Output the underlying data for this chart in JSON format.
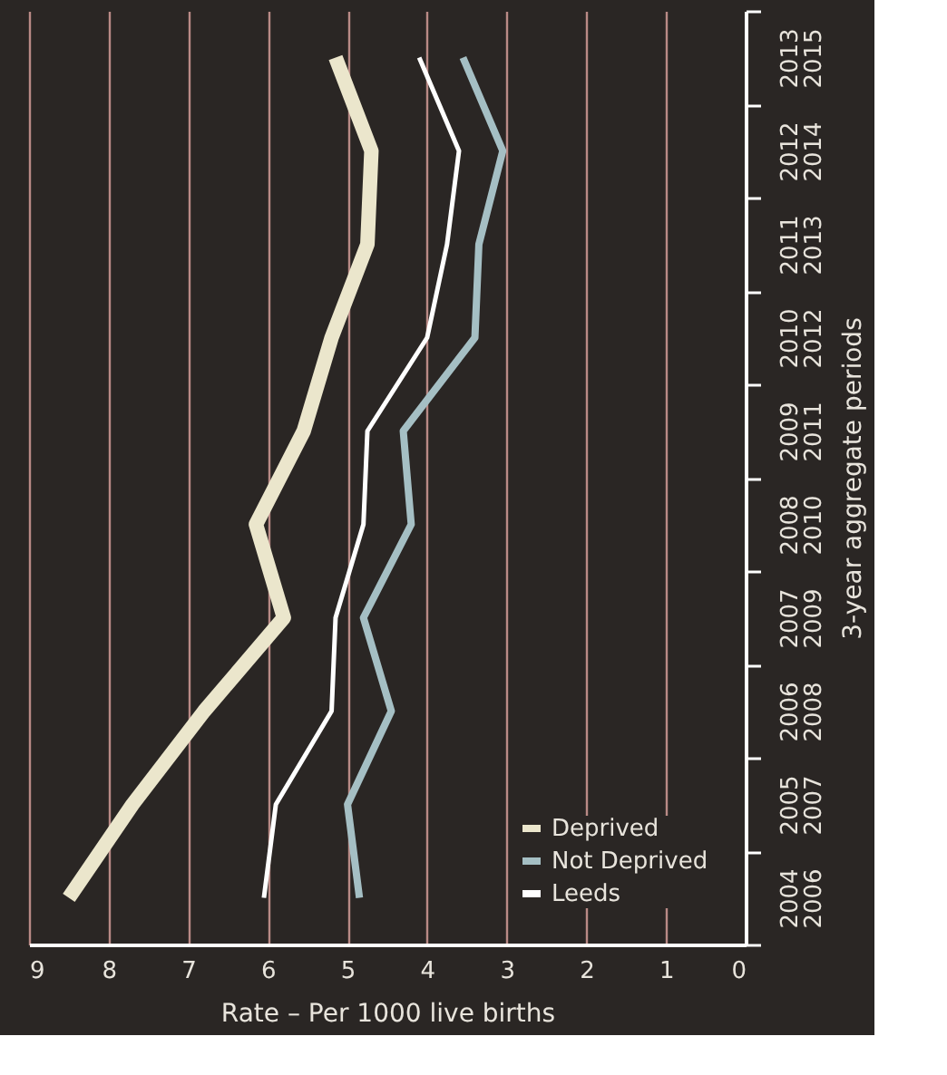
{
  "chart_data": {
    "type": "line",
    "orientation": "horizontal",
    "xlabel": "Rate – Per 1000 live births",
    "ylabel": "3-year aggregate periods",
    "categories": [
      "2013 2015",
      "2012 2014",
      "2011 2013",
      "2010 2012",
      "2009 2011",
      "2008 2010",
      "2007 2009",
      "2006 2008",
      "2005 2007",
      "2004 2006"
    ],
    "series": [
      {
        "name": "Deprived",
        "color": "#ebe6cc",
        "values": [
          5.15,
          4.7,
          4.75,
          5.2,
          5.55,
          6.15,
          5.8,
          6.8,
          7.7,
          8.5
        ]
      },
      {
        "name": "Not Deprived",
        "color": "#a5bfc4",
        "values": [
          3.55,
          3.05,
          3.35,
          3.4,
          4.3,
          4.2,
          4.8,
          4.45,
          5.0,
          4.85
        ]
      },
      {
        "name": "Leeds",
        "color": "#ffffff",
        "values": [
          4.1,
          3.6,
          3.75,
          4.0,
          4.75,
          4.8,
          5.15,
          5.2,
          5.9,
          6.05
        ]
      }
    ],
    "xlim": [
      9,
      0
    ],
    "xticks": [
      9,
      8,
      7,
      6,
      5,
      4,
      3,
      2,
      1,
      0
    ],
    "grid": "x",
    "legend": "bottom right",
    "line_style": "solid",
    "marker": "none"
  }
}
